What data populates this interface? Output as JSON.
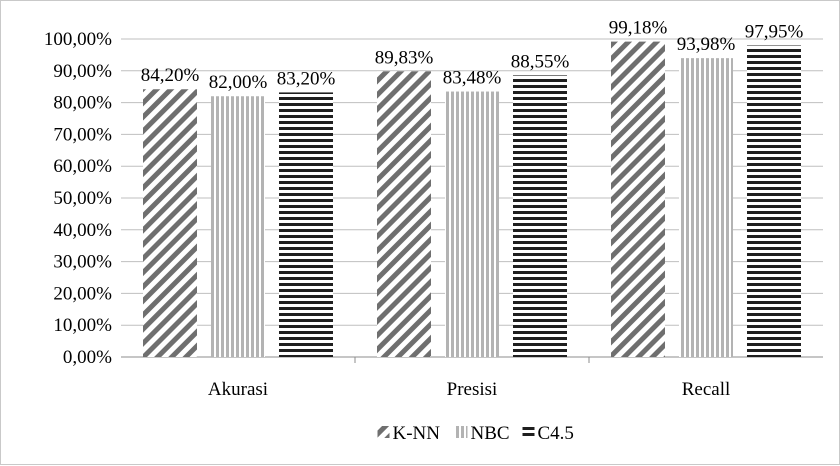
{
  "chart_data": {
    "type": "bar",
    "categories": [
      "Akurasi",
      "Presisi",
      "Recall"
    ],
    "series": [
      {
        "name": "K-NN",
        "values": [
          84.2,
          89.83,
          99.18
        ],
        "labels": [
          "84,20%",
          "89,83%",
          "99,18%"
        ],
        "pattern": "diagonal-stripes"
      },
      {
        "name": "NBC",
        "values": [
          82.0,
          83.48,
          93.98
        ],
        "labels": [
          "82,00%",
          "83,48%",
          "93,98%"
        ],
        "pattern": "vertical-stripes"
      },
      {
        "name": "C4.5",
        "values": [
          83.2,
          88.55,
          97.95
        ],
        "labels": [
          "83,20%",
          "88,55%",
          "97,95%"
        ],
        "pattern": "horizontal-stripes"
      }
    ],
    "yticks": [
      "0,00%",
      "10,00%",
      "20,00%",
      "30,00%",
      "40,00%",
      "50,00%",
      "60,00%",
      "70,00%",
      "80,00%",
      "90,00%",
      "100,00%"
    ],
    "ylim": [
      0,
      100
    ],
    "xlabel": "",
    "ylabel": "",
    "grid": true,
    "legend_position": "bottom"
  }
}
